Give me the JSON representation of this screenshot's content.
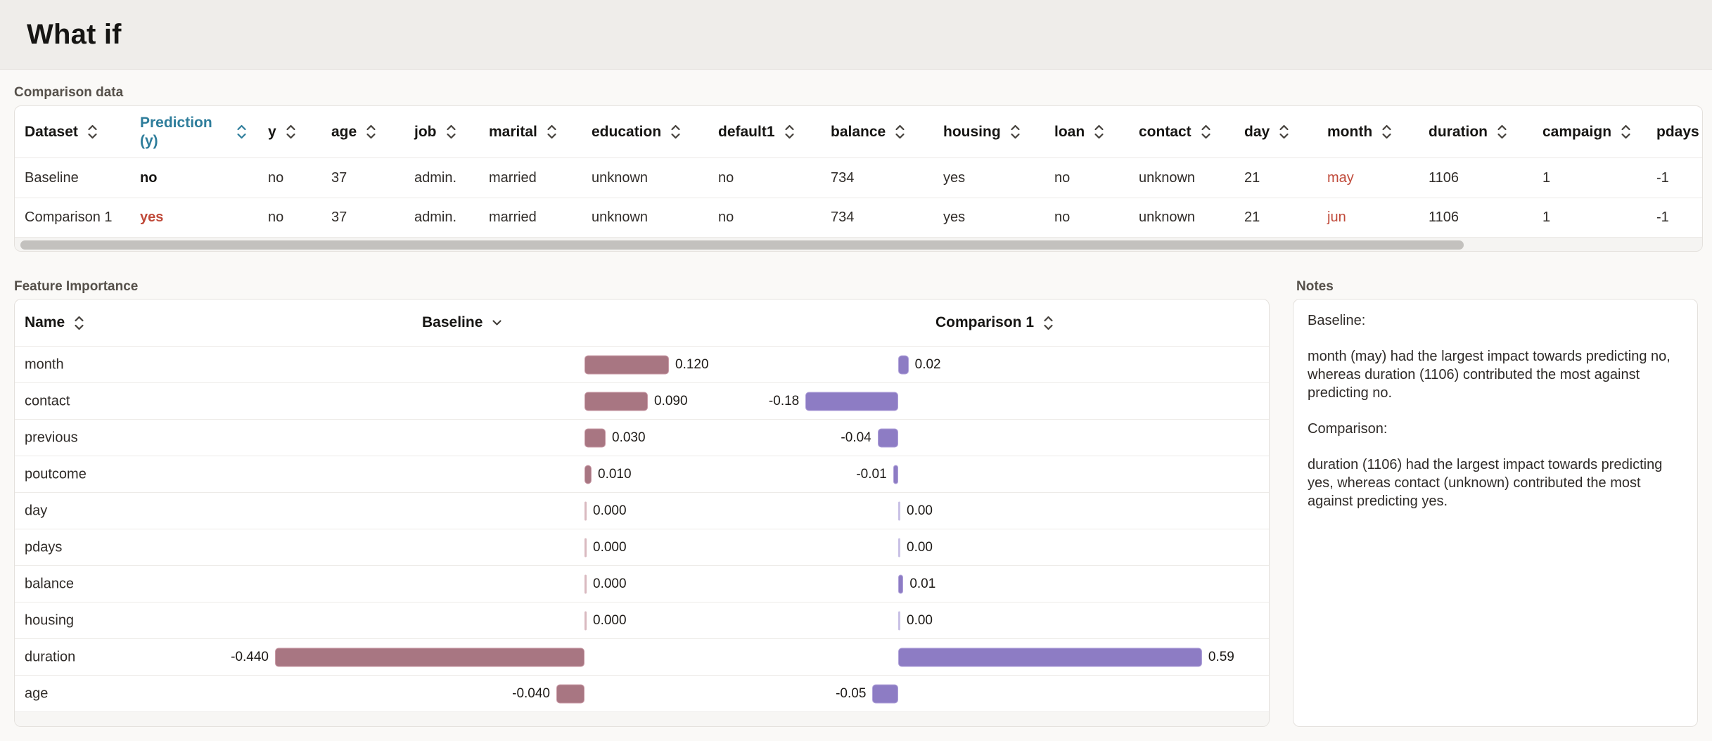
{
  "page": {
    "title": "What if"
  },
  "colors": {
    "accent_blue": "#2e7d9b",
    "accent_red": "#c04a3a",
    "baseline_bar": "#a87682",
    "baseline_bar_border": "#c99aa6",
    "baseline_zero_tick": "#d9b9c0",
    "comparison_bar": "#8d7cc4",
    "comparison_bar_border": "#b0a2da",
    "comparison_zero_tick": "#c9c1e6",
    "scrollbar_thumb": "#c3c1be"
  },
  "comparison_table": {
    "section_label": "Comparison data",
    "columns": [
      {
        "label": "Dataset",
        "sortable": true
      },
      {
        "label": "Prediction (y)",
        "sortable": true,
        "highlighted": true
      },
      {
        "label": "y",
        "sortable": true
      },
      {
        "label": "age",
        "sortable": true
      },
      {
        "label": "job",
        "sortable": true
      },
      {
        "label": "marital",
        "sortable": true
      },
      {
        "label": "education",
        "sortable": true
      },
      {
        "label": "default1",
        "sortable": true
      },
      {
        "label": "balance",
        "sortable": true
      },
      {
        "label": "housing",
        "sortable": true
      },
      {
        "label": "loan",
        "sortable": true
      },
      {
        "label": "contact",
        "sortable": true
      },
      {
        "label": "day",
        "sortable": true
      },
      {
        "label": "month",
        "sortable": true
      },
      {
        "label": "duration",
        "sortable": true
      },
      {
        "label": "campaign",
        "sortable": true
      },
      {
        "label": "pdays",
        "sortable": true
      }
    ],
    "rows": [
      {
        "dataset": "Baseline",
        "cells": [
          {
            "text": "Baseline"
          },
          {
            "text": "no",
            "style": "bold"
          },
          {
            "text": "no"
          },
          {
            "text": "37"
          },
          {
            "text": "admin."
          },
          {
            "text": "married"
          },
          {
            "text": "unknown"
          },
          {
            "text": "no"
          },
          {
            "text": "734"
          },
          {
            "text": "yes"
          },
          {
            "text": "no"
          },
          {
            "text": "unknown"
          },
          {
            "text": "21"
          },
          {
            "text": "may",
            "style": "red"
          },
          {
            "text": "1106"
          },
          {
            "text": "1"
          },
          {
            "text": "-1"
          }
        ]
      },
      {
        "dataset": "Comparison 1",
        "cells": [
          {
            "text": "Comparison 1"
          },
          {
            "text": "yes",
            "style": "bold-red"
          },
          {
            "text": "no"
          },
          {
            "text": "37"
          },
          {
            "text": "admin."
          },
          {
            "text": "married"
          },
          {
            "text": "unknown"
          },
          {
            "text": "no"
          },
          {
            "text": "734"
          },
          {
            "text": "yes"
          },
          {
            "text": "no"
          },
          {
            "text": "unknown"
          },
          {
            "text": "21"
          },
          {
            "text": "jun",
            "style": "red"
          },
          {
            "text": "1106"
          },
          {
            "text": "1"
          },
          {
            "text": "-1"
          }
        ]
      }
    ]
  },
  "feature_importance": {
    "section_label": "Feature Importance",
    "name_header": {
      "label": "Name"
    },
    "baseline_header": {
      "label": "Baseline"
    },
    "comparison_header": {
      "label": "Comparison 1"
    },
    "chart_data": {
      "type": "bar",
      "categories": [
        "month",
        "contact",
        "previous",
        "poutcome",
        "day",
        "pdays",
        "balance",
        "housing",
        "duration",
        "age"
      ],
      "series": [
        {
          "name": "Baseline",
          "values": [
            0.12,
            0.09,
            0.03,
            0.01,
            0.0,
            0.0,
            0.0,
            0.0,
            -0.44,
            -0.04
          ]
        },
        {
          "name": "Comparison 1",
          "values": [
            0.02,
            -0.18,
            -0.04,
            -0.01,
            0.0,
            0.0,
            0.01,
            0.0,
            0.59,
            -0.05
          ]
        }
      ]
    },
    "rows": [
      {
        "name": "month",
        "baseline": {
          "value": 0.12,
          "label": "0.120"
        },
        "comparison": {
          "value": 0.02,
          "label": "0.02"
        }
      },
      {
        "name": "contact",
        "baseline": {
          "value": 0.09,
          "label": "0.090"
        },
        "comparison": {
          "value": -0.18,
          "label": "-0.18"
        }
      },
      {
        "name": "previous",
        "baseline": {
          "value": 0.03,
          "label": "0.030"
        },
        "comparison": {
          "value": -0.04,
          "label": "-0.04"
        }
      },
      {
        "name": "poutcome",
        "baseline": {
          "value": 0.01,
          "label": "0.010"
        },
        "comparison": {
          "value": -0.01,
          "label": "-0.01"
        }
      },
      {
        "name": "day",
        "baseline": {
          "value": 0.0,
          "label": "0.000"
        },
        "comparison": {
          "value": 0.0,
          "label": "0.00"
        }
      },
      {
        "name": "pdays",
        "baseline": {
          "value": 0.0,
          "label": "0.000"
        },
        "comparison": {
          "value": 0.0,
          "label": "0.00"
        }
      },
      {
        "name": "balance",
        "baseline": {
          "value": 0.0,
          "label": "0.000"
        },
        "comparison": {
          "value": 0.01,
          "label": "0.01"
        }
      },
      {
        "name": "housing",
        "baseline": {
          "value": 0.0,
          "label": "0.000"
        },
        "comparison": {
          "value": 0.0,
          "label": "0.00"
        }
      },
      {
        "name": "duration",
        "baseline": {
          "value": -0.44,
          "label": "-0.440"
        },
        "comparison": {
          "value": 0.59,
          "label": "0.59"
        }
      },
      {
        "name": "age",
        "baseline": {
          "value": -0.04,
          "label": "-0.040"
        },
        "comparison": {
          "value": -0.05,
          "label": "-0.05"
        }
      }
    ]
  },
  "notes": {
    "section_label": "Notes",
    "paragraphs": [
      "Baseline:",
      "month (may) had the largest impact towards predicting no, whereas duration (1106) contributed the most against predicting no.",
      "Comparison:",
      "duration (1106) had the largest impact towards predicting yes, whereas contact (unknown) contributed the most against predicting yes."
    ]
  }
}
